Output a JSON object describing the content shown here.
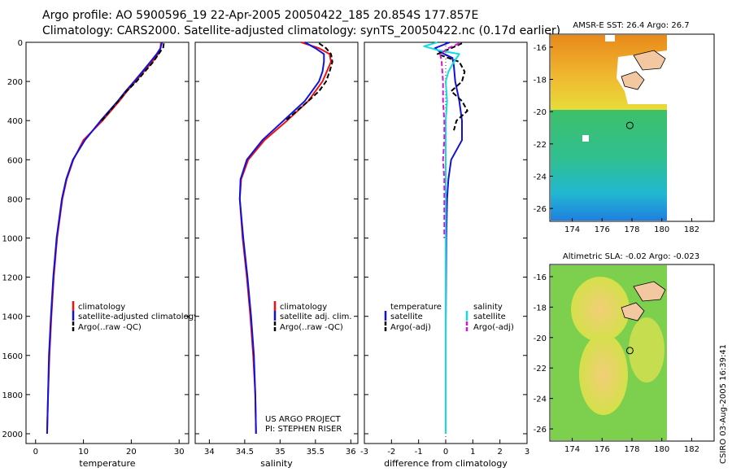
{
  "header": {
    "title_line1": "Argo profile: AO 5900596_19 22-Apr-2005 20050422_185 20.854S 177.857E",
    "title_line2": "Climatology: CARS2000. Satellite-adjusted climatology: synTS_20050422.nc (0.17d earlier)"
  },
  "credit": "CSIRO 03-Aug-2005 16:39:41",
  "project_note": {
    "line1": "US ARGO PROJECT",
    "line2": "PI: STEPHEN RISER"
  },
  "colors": {
    "red": "#ee1111",
    "blue": "#1111dd",
    "black": "#000000",
    "cyan": "#11dddd",
    "magenta": "#dd11dd"
  },
  "chart_data": [
    {
      "type": "line",
      "name": "temperature",
      "xlabel": "temperature",
      "ylabel": "",
      "xlim": [
        -2,
        32
      ],
      "ylim": [
        2050,
        0
      ],
      "xticks": [
        0,
        10,
        20,
        30
      ],
      "yticks": [
        0,
        200,
        400,
        600,
        800,
        1000,
        1200,
        1400,
        1600,
        1800,
        2000
      ],
      "legend": [
        "climatology",
        "satellite-adjusted climatology",
        "Argo(..raw -QC)"
      ],
      "series": [
        {
          "name": "climatology",
          "color": "red",
          "style": "solid",
          "depth": [
            0,
            30,
            60,
            100,
            150,
            200,
            250,
            300,
            400,
            500,
            600,
            700,
            800,
            1000,
            1200,
            1400,
            1600,
            1800,
            2000
          ],
          "values": [
            26.2,
            26.1,
            25.6,
            24.4,
            22.6,
            20.9,
            19.1,
            17.5,
            14.0,
            10.0,
            7.9,
            6.5,
            5.6,
            4.5,
            3.8,
            3.3,
            2.9,
            2.6,
            2.4
          ]
        },
        {
          "name": "satellite-adjusted climatology",
          "color": "blue",
          "style": "solid",
          "depth": [
            0,
            30,
            60,
            100,
            150,
            200,
            250,
            300,
            400,
            500,
            600,
            700,
            800,
            1000,
            1200,
            1400,
            1600,
            1800,
            2000
          ],
          "values": [
            26.4,
            26.1,
            25.3,
            24.0,
            22.3,
            20.6,
            18.8,
            17.2,
            13.6,
            10.3,
            7.8,
            6.4,
            5.5,
            4.4,
            3.7,
            3.2,
            2.8,
            2.6,
            2.4
          ]
        },
        {
          "name": "Argo(..raw -QC)",
          "color": "black",
          "style": "dashed",
          "depth": [
            5,
            25,
            50,
            100,
            150,
            200,
            250,
            300,
            400
          ],
          "values": [
            26.8,
            26.7,
            26.0,
            24.6,
            22.8,
            21.1,
            19.0,
            17.3,
            13.8
          ]
        }
      ]
    },
    {
      "type": "line",
      "name": "salinity",
      "xlabel": "salinity",
      "ylabel": "",
      "xlim": [
        33.8,
        36.1
      ],
      "ylim": [
        2050,
        0
      ],
      "xticks": [
        34,
        34.5,
        35,
        35.5,
        36
      ],
      "legend": [
        "climatology",
        "satellite adj. clim.",
        "Argo(..raw -QC)"
      ],
      "series": [
        {
          "name": "climatology",
          "color": "red",
          "style": "solid",
          "depth": [
            0,
            30,
            60,
            100,
            150,
            200,
            300,
            400,
            500,
            600,
            700,
            800,
            1000,
            1200,
            1400,
            1600,
            1800,
            2000
          ],
          "values": [
            35.3,
            35.55,
            35.7,
            35.72,
            35.66,
            35.6,
            35.4,
            35.1,
            34.78,
            34.55,
            34.45,
            34.43,
            34.47,
            34.53,
            34.58,
            34.62,
            34.65,
            34.66
          ]
        },
        {
          "name": "satellite adj. clim.",
          "color": "blue",
          "style": "solid",
          "depth": [
            0,
            30,
            60,
            100,
            150,
            200,
            300,
            400,
            500,
            600,
            700,
            800,
            1000,
            1200,
            1400,
            1600,
            1800,
            2000
          ],
          "values": [
            35.35,
            35.5,
            35.62,
            35.62,
            35.6,
            35.55,
            35.35,
            35.05,
            34.75,
            34.53,
            34.44,
            34.43,
            34.48,
            34.54,
            34.59,
            34.63,
            34.65,
            34.66
          ]
        },
        {
          "name": "Argo(..raw -QC)",
          "color": "black",
          "style": "dashed",
          "depth": [
            5,
            30,
            60,
            100,
            150,
            200,
            250,
            300,
            400
          ],
          "values": [
            35.55,
            35.65,
            35.72,
            35.74,
            35.7,
            35.65,
            35.55,
            35.4,
            35.08
          ]
        }
      ]
    },
    {
      "type": "line",
      "name": "difference",
      "xlabel": "difference from climatology",
      "ylabel": "",
      "xlim": [
        -3,
        3
      ],
      "ylim": [
        2050,
        0
      ],
      "xticks": [
        -3,
        -2,
        -1,
        0,
        1,
        2,
        3
      ],
      "legend": [
        "temperature",
        "satellite",
        "Argo(-adj)",
        "salinity",
        "satellite",
        "Argo(-adj)"
      ],
      "series": [
        {
          "name": "temperature satellite",
          "color": "blue",
          "style": "solid",
          "depth": [
            0,
            30,
            50,
            80,
            120,
            200,
            300,
            400,
            500,
            600,
            700,
            800,
            1000,
            1500,
            2000
          ],
          "values": [
            0.15,
            -0.4,
            -0.2,
            0.25,
            0.3,
            0.35,
            0.5,
            0.6,
            0.6,
            0.2,
            0.1,
            0.05,
            0.02,
            0.0,
            0.0
          ]
        },
        {
          "name": "temperature Argo(-adj)",
          "color": "black",
          "style": "dashed",
          "depth": [
            5,
            30,
            60,
            100,
            150,
            200,
            250,
            300,
            350,
            400,
            450
          ],
          "values": [
            0.6,
            0.2,
            -0.3,
            0.5,
            0.7,
            0.6,
            0.2,
            0.6,
            0.8,
            0.4,
            0.3
          ]
        },
        {
          "name": "salinity satellite",
          "color": "cyan",
          "style": "solid",
          "depth": [
            0,
            20,
            40,
            60,
            100,
            150,
            200,
            300,
            400,
            600,
            800,
            1000,
            1500,
            2000
          ],
          "values": [
            -0.3,
            -0.8,
            -0.3,
            0.5,
            0.3,
            0.1,
            0.0,
            0.05,
            0.0,
            0.0,
            0.0,
            0.0,
            0.0,
            0.0
          ]
        },
        {
          "name": "salinity Argo(-adj)",
          "color": "magenta",
          "style": "dashed",
          "depth": [
            5,
            30,
            60,
            100,
            200,
            300,
            400,
            500,
            600,
            700,
            800,
            900,
            1000
          ],
          "values": [
            0.5,
            0.1,
            -0.2,
            -0.15,
            -0.1,
            -0.1,
            -0.05,
            -0.05,
            -0.1,
            -0.05,
            -0.05,
            -0.05,
            -0.05
          ]
        }
      ]
    }
  ],
  "maps": [
    {
      "name": "sst",
      "title": "AMSR-E SST: 26.4  Argo: 26.7",
      "xticks": [
        174,
        176,
        178,
        180,
        182
      ],
      "yticks": [
        -16,
        -18,
        -20,
        -22,
        -24,
        -26
      ],
      "xlim": [
        172.5,
        183.5
      ],
      "ylim": [
        -26.8,
        -15.2
      ],
      "float_position": [
        177.857,
        -20.854
      ]
    },
    {
      "name": "sla",
      "title": "Altimetric SLA: -0.02  Argo: -0.023",
      "xticks": [
        174,
        176,
        178,
        180,
        182
      ],
      "yticks": [
        -16,
        -18,
        -20,
        -22,
        -24,
        -26
      ],
      "xlim": [
        172.5,
        183.5
      ],
      "ylim": [
        -26.8,
        -15.2
      ],
      "float_position": [
        177.857,
        -20.854
      ]
    }
  ]
}
